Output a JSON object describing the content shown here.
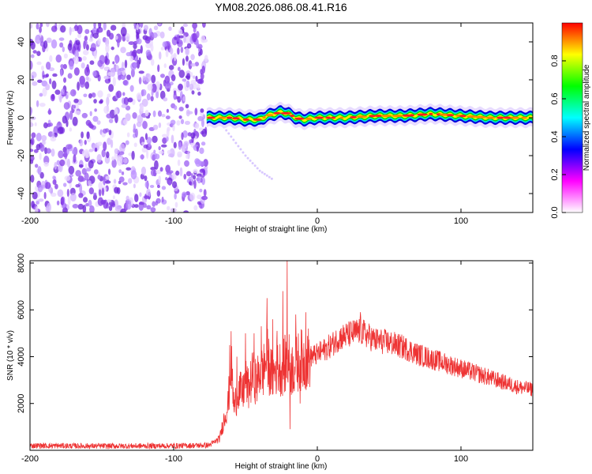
{
  "title": "YM08.2026.086.08.41.R16",
  "chart_data": [
    {
      "type": "heatmap",
      "xlabel": "Height of straight line (km)",
      "ylabel": "Frequency (Hz)",
      "xlim": [
        -200,
        150
      ],
      "ylim": [
        -50,
        50
      ],
      "xticks": [
        -200,
        -100,
        0,
        100
      ],
      "yticks": [
        -40,
        -20,
        0,
        20,
        40
      ],
      "grid": false,
      "colorbar": {
        "label": "Normalized spectral amplitude",
        "range": [
          0,
          1
        ],
        "ticks": [
          "0.0",
          "0.2",
          "0.4",
          "0.6",
          "0.8"
        ],
        "colors": [
          "#ffffff",
          "#ff00ff",
          "#0000ff",
          "#00ffff",
          "#00ff00",
          "#ffff00",
          "#ff0000"
        ]
      },
      "noise_region_x": [
        -200,
        -77
      ],
      "spectral_line": {
        "x_start": -77,
        "frequency": [
          [
            -77,
            0
          ],
          [
            -70,
            0
          ],
          [
            -60,
            0
          ],
          [
            -50,
            -1
          ],
          [
            -40,
            -1
          ],
          [
            -35,
            1
          ],
          [
            -30,
            2
          ],
          [
            -25,
            3
          ],
          [
            -20,
            2
          ],
          [
            -15,
            0
          ],
          [
            -10,
            -1
          ],
          [
            0,
            0
          ],
          [
            20,
            0
          ],
          [
            40,
            1
          ],
          [
            60,
            1
          ],
          [
            80,
            2
          ],
          [
            100,
            1
          ],
          [
            120,
            0
          ],
          [
            150,
            0
          ]
        ]
      },
      "faint_trace": [
        [
          -70,
          0
        ],
        [
          -60,
          -10
        ],
        [
          -50,
          -20
        ],
        [
          -40,
          -28
        ],
        [
          -30,
          -33
        ]
      ]
    },
    {
      "type": "line",
      "xlabel": "Height of straight line (km)",
      "ylabel": "SNR (10 * v/v)",
      "xlim": [
        -200,
        150
      ],
      "ylim": [
        0,
        8100
      ],
      "xticks": [
        -200,
        -100,
        0,
        100
      ],
      "yticks": [
        2000,
        4000,
        6000,
        8000
      ],
      "grid": false,
      "series": [
        {
          "color": "#ee3333",
          "x": [
            -200,
            -150,
            -100,
            -75,
            -68,
            -65,
            -62,
            -60,
            -58,
            -55,
            -52,
            -50,
            -48,
            -45,
            -42,
            -40,
            -38,
            -35,
            -32,
            -30,
            -28,
            -25,
            -22,
            -20,
            -18,
            -15,
            -12,
            -10,
            -5,
            0,
            5,
            10,
            15,
            20,
            25,
            30,
            35,
            40,
            50,
            60,
            70,
            80,
            90,
            100,
            110,
            120,
            130,
            140,
            150
          ],
          "values": [
            200,
            180,
            190,
            220,
            500,
            1300,
            2000,
            3800,
            1800,
            2600,
            2400,
            3000,
            2600,
            3200,
            2900,
            3400,
            3300,
            4000,
            3200,
            3300,
            3600,
            3500,
            3700,
            3800,
            3500,
            3600,
            3900,
            3800,
            4000,
            4100,
            4300,
            4500,
            4800,
            4900,
            5000,
            5100,
            4900,
            4700,
            4600,
            4400,
            4100,
            3900,
            3700,
            3500,
            3300,
            3100,
            2900,
            2700,
            2600
          ]
        }
      ],
      "spikes": [
        [
          -61,
          4500
        ],
        [
          -56,
          4000
        ],
        [
          -50,
          5000
        ],
        [
          -44,
          5000
        ],
        [
          -39,
          5300
        ],
        [
          -35,
          6500
        ],
        [
          -31,
          5600
        ],
        [
          -28,
          5100
        ],
        [
          -24,
          6800
        ],
        [
          -21,
          8100
        ],
        [
          -19,
          900
        ],
        [
          -15,
          5800
        ],
        [
          -12,
          2000
        ],
        [
          -8,
          5900
        ],
        [
          30,
          5900
        ]
      ]
    }
  ]
}
